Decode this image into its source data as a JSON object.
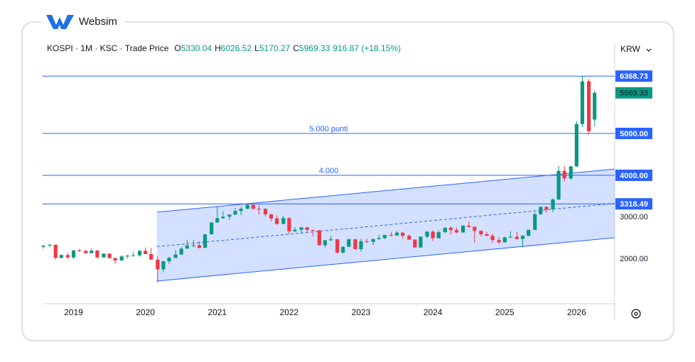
{
  "brand": "Websim",
  "chart_data": {
    "type": "candlestick",
    "header": {
      "symbol": "KOSPI · 1M · KSC · Trade Price",
      "ohlc_labels": [
        "O",
        "H",
        "L",
        "C"
      ],
      "change": "916.87 (+18.15%)"
    },
    "currency": "KRW",
    "up_color": "#089981",
    "down_color": "#f23645",
    "x": [
      2018.58,
      2018.67,
      2018.75,
      2018.83,
      2018.92,
      2019,
      2019.08,
      2019.17,
      2019.25,
      2019.33,
      2019.42,
      2019.5,
      2019.58,
      2019.67,
      2019.75,
      2019.83,
      2019.92,
      2020,
      2020.08,
      2020.17,
      2020.25,
      2020.33,
      2020.42,
      2020.5,
      2020.58,
      2020.67,
      2020.75,
      2020.83,
      2020.92,
      2021,
      2021.08,
      2021.17,
      2021.25,
      2021.33,
      2021.42,
      2021.5,
      2021.58,
      2021.67,
      2021.75,
      2021.83,
      2021.92,
      2022,
      2022.08,
      2022.17,
      2022.25,
      2022.33,
      2022.42,
      2022.5,
      2022.58,
      2022.67,
      2022.75,
      2022.83,
      2022.92,
      2023,
      2023.08,
      2023.17,
      2023.25,
      2023.33,
      2023.42,
      2023.5,
      2023.58,
      2023.67,
      2023.75,
      2023.83,
      2023.92,
      2024,
      2024.08,
      2024.17,
      2024.25,
      2024.33,
      2024.42,
      2024.5,
      2024.58,
      2024.67,
      2024.75,
      2024.83,
      2024.92,
      2025,
      2025.08,
      2025.17,
      2025.25,
      2025.33,
      2025.42,
      2025.5,
      2025.58,
      2025.67,
      2025.75,
      2025.83,
      2025.92,
      2026,
      2026.08,
      2026.17,
      2026.25
    ],
    "open": [
      2295,
      2322,
      2343,
      2029,
      2097,
      2041,
      2205,
      2195,
      2140,
      2203,
      2041,
      2130,
      2024,
      1967,
      2063,
      2083,
      2087,
      2197,
      2119,
      1987,
      1754,
      1947,
      2029,
      2108,
      2249,
      2326,
      2327,
      2267,
      2591,
      2873,
      2976,
      3012,
      3061,
      3147,
      3203,
      3296,
      3202,
      3199,
      3068,
      2970,
      2839,
      2977,
      2663,
      2699,
      2757,
      2695,
      2685,
      2332,
      2451,
      2472,
      2155,
      2293,
      2472,
      2236,
      2425,
      2412,
      2476,
      2501,
      2577,
      2564,
      2632,
      2556,
      2465,
      2277,
      2535,
      2655,
      2497,
      2642,
      2747,
      2692,
      2636,
      2797,
      2770,
      2674,
      2593,
      2556,
      2455,
      2399,
      2517,
      2532,
      2481,
      2556,
      2697,
      3071,
      3245,
      3186,
      3424,
      4107,
      3926,
      4214,
      5224,
      6244,
      5330.04
    ],
    "high": [
      2335,
      2356,
      2345,
      2112,
      2143,
      2221,
      2246,
      2218,
      2252,
      2215,
      2139,
      2136,
      2034,
      2092,
      2095,
      2171,
      2210,
      2277,
      2269,
      2056,
      1959,
      2055,
      2217,
      2281,
      2459,
      2454,
      2423,
      2591,
      2878,
      3266,
      3138,
      3069,
      3220,
      3249,
      3316,
      3305,
      3294,
      3213,
      3074,
      3040,
      3034,
      3003,
      2760,
      2767,
      2763,
      2698,
      2695,
      2452,
      2548,
      2481,
      2303,
      2492,
      2483,
      2485,
      2485,
      2495,
      2571,
      2580,
      2648,
      2668,
      2639,
      2589,
      2470,
      2541,
      2670,
      2685,
      2682,
      2757,
      2779,
      2752,
      2809,
      2896,
      2779,
      2686,
      2650,
      2605,
      2519,
      2536,
      2668,
      2647,
      2576,
      2707,
      3116,
      3254,
      3264,
      3450,
      4227,
      4226,
      4227,
      5290,
      6368.73,
      6300,
      6026.52
    ],
    "low": [
      2247,
      2289,
      1985,
      2014,
      2003,
      1993,
      2175,
      2131,
      2137,
      2011,
      2027,
      2010,
      1891,
      1967,
      2020,
      2081,
      2060,
      2119,
      1988,
      1439,
      1685,
      1886,
      2030,
      2097,
      2250,
      2285,
      2257,
      2267,
      2591,
      2869,
      2957,
      2936,
      3056,
      3051,
      3184,
      3181,
      3060,
      3019,
      2901,
      2822,
      2837,
      2591,
      2647,
      2609,
      2636,
      2546,
      2324,
      2276,
      2426,
      2134,
      2134,
      2286,
      2234,
      2180,
      2384,
      2339,
      2461,
      2474,
      2543,
      2556,
      2494,
      2460,
      2273,
      2276,
      2501,
      2429,
      2496,
      2622,
      2584,
      2620,
      2629,
      2747,
      2386,
      2536,
      2551,
      2396,
      2360,
      2397,
      2499,
      2460,
      2284,
      2540,
      2691,
      3052,
      3107,
      3118,
      3412,
      3853,
      3890,
      4200,
      5150,
      4980,
      5170.27
    ],
    "close": [
      2322,
      2343,
      2029,
      2097,
      2041,
      2205,
      2195,
      2140,
      2203,
      2041,
      2130,
      2024,
      1967,
      2063,
      2083,
      2087,
      2197,
      2119,
      1987,
      1754,
      1947,
      2029,
      2108,
      2249,
      2326,
      2327,
      2267,
      2591,
      2873,
      2976,
      3012,
      3061,
      3147,
      3203,
      3296,
      3202,
      3199,
      3068,
      2970,
      2839,
      2977,
      2663,
      2699,
      2757,
      2695,
      2685,
      2332,
      2451,
      2472,
      2155,
      2293,
      2472,
      2236,
      2425,
      2412,
      2476,
      2501,
      2577,
      2564,
      2632,
      2556,
      2465,
      2277,
      2535,
      2655,
      2497,
      2642,
      2747,
      2692,
      2636,
      2797,
      2770,
      2674,
      2593,
      2556,
      2455,
      2399,
      2517,
      2532,
      2481,
      2556,
      2697,
      3071,
      3245,
      3186,
      3424,
      4107,
      3926,
      4214,
      5224,
      6244,
      5052.46,
      5969.33
    ],
    "channel": {
      "color": "#2962ff",
      "x": [
        2020.16,
        2026.53
      ],
      "upper": [
        3120,
        4150
      ],
      "lower": [
        1475,
        2510
      ]
    },
    "hlines": [
      {
        "value": 6368.73
      },
      {
        "value": 5000,
        "label": "5000.00",
        "text": "5.000 punti"
      },
      {
        "value": 4000,
        "label": "4000.00",
        "text": "4.000"
      },
      {
        "value": 3318.49
      }
    ],
    "hline_color": "#2962ff",
    "xlim": [
      2018.57,
      2026.53
    ],
    "xticks": [
      2019,
      2020,
      2021,
      2022,
      2023,
      2024,
      2025,
      2026
    ],
    "ylim": [
      932,
      7169
    ],
    "yticks": [
      {
        "value": 2000,
        "label": "2000.00"
      },
      {
        "value": 3000,
        "label": "3000.00"
      }
    ],
    "grid": false
  }
}
